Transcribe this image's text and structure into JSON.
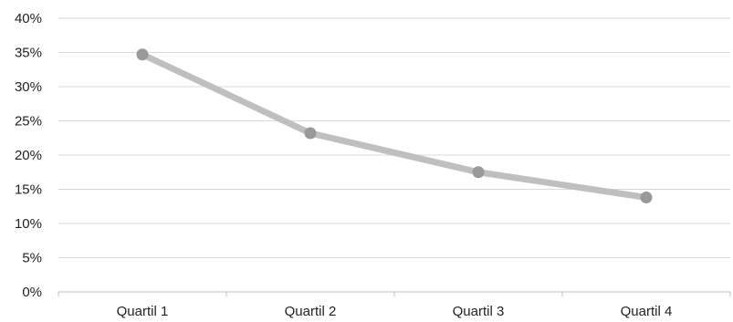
{
  "chart_data": {
    "type": "line",
    "categories": [
      "Quartil 1",
      "Quartil 2",
      "Quartil 3",
      "Quartil 4"
    ],
    "series": [
      {
        "values": [
          34.7,
          23.2,
          17.5,
          13.8
        ]
      }
    ],
    "y_ticks": [
      "0%",
      "5%",
      "10%",
      "15%",
      "20%",
      "25%",
      "30%",
      "35%",
      "40%"
    ],
    "ylim": [
      0,
      40
    ],
    "y_step": 5,
    "grid": true,
    "legend": "none",
    "colors": {
      "line": "#bfbfbf",
      "marker": "#999999",
      "grid": "#d9d9d9"
    }
  }
}
